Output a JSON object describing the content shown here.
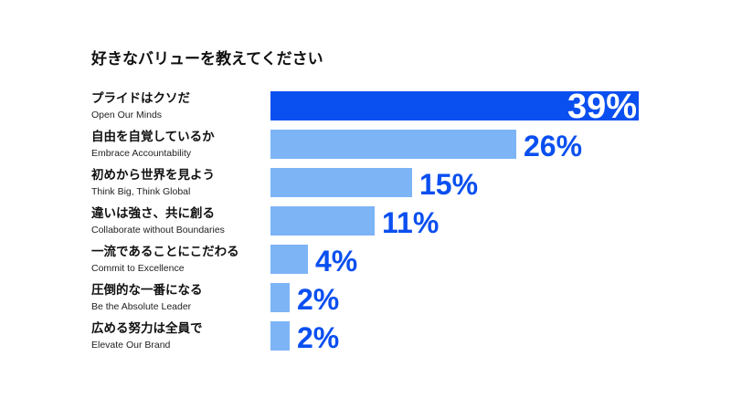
{
  "chart_data": {
    "type": "bar",
    "orientation": "horizontal",
    "title": "好きなバリューを教えてください",
    "categories": [
      {
        "ja": "プライドはクソだ",
        "en": "Open Our Minds"
      },
      {
        "ja": "自由を自覚しているか",
        "en": "Embrace Accountability"
      },
      {
        "ja": "初めから世界を見よう",
        "en": "Think Big, Think Global"
      },
      {
        "ja": "違いは強さ、共に創る",
        "en": "Collaborate without Boundaries"
      },
      {
        "ja": "一流であることにこだわる",
        "en": "Commit to Excellence"
      },
      {
        "ja": "圧倒的な一番になる",
        "en": "Be the Absolute Leader"
      },
      {
        "ja": "広める努力は全員で",
        "en": "Elevate Our Brand"
      }
    ],
    "values": [
      39,
      26,
      15,
      11,
      4,
      2,
      2
    ],
    "value_labels": [
      "39%",
      "26%",
      "15%",
      "11%",
      "4%",
      "2%",
      "2%"
    ],
    "unit": "%",
    "highlight_index": 0,
    "colors": {
      "highlight": "#0a4ff0",
      "bar": "#7db4f5",
      "label_dark": "#0a4ff0",
      "label_light": "#ffffff",
      "text": "#111111"
    },
    "grid": false,
    "legend": "none"
  }
}
